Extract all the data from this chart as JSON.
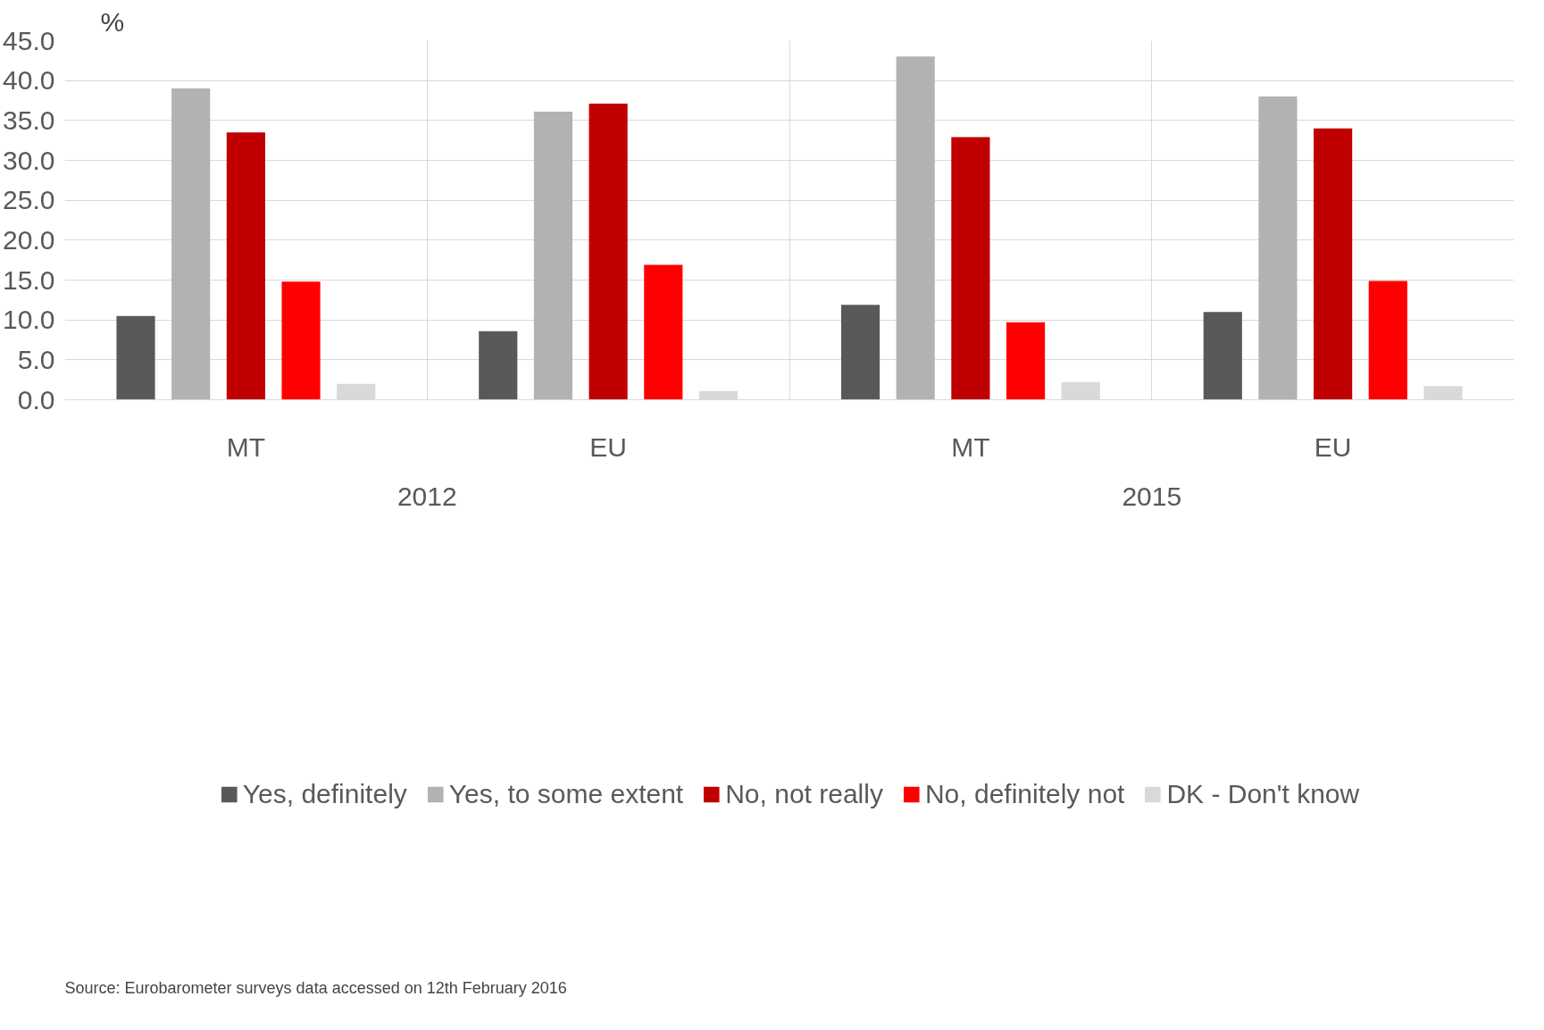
{
  "chart_data": {
    "type": "bar",
    "ylabel": "%",
    "categories": [
      "MT",
      "EU",
      "MT",
      "EU"
    ],
    "series": [
      {
        "name": "Yes, definitely",
        "color": "#595959",
        "values": [
          10.5,
          8.6,
          11.9,
          11.0
        ]
      },
      {
        "name": "Yes, to some extent",
        "color": "#b2b2b2",
        "values": [
          39.0,
          36.1,
          43.0,
          38.0
        ]
      },
      {
        "name": "No, not really",
        "color": "#c00000",
        "values": [
          33.5,
          37.1,
          32.9,
          34.0
        ]
      },
      {
        "name": "No, definitely not",
        "color": "#ff0000",
        "values": [
          14.8,
          16.9,
          9.7,
          14.9
        ]
      },
      {
        "name": "DK - Don't know",
        "color": "#d9d9d9",
        "values": [
          2.0,
          1.1,
          2.2,
          1.7
        ]
      }
    ],
    "ylim": [
      0,
      45
    ],
    "yticks": [
      {
        "value": 0,
        "label": "0.0"
      },
      {
        "value": 5,
        "label": "5.0"
      },
      {
        "value": 10,
        "label": "10.0"
      },
      {
        "value": 15,
        "label": "15.0"
      },
      {
        "value": 20,
        "label": "20.0"
      },
      {
        "value": 25,
        "label": "25.0"
      },
      {
        "value": 30,
        "label": "30.0"
      },
      {
        "value": 35,
        "label": "35.0"
      },
      {
        "value": 40,
        "label": "40.0"
      },
      {
        "value": 45,
        "label": "45.0"
      }
    ],
    "grid": true,
    "legend": "bottom",
    "annotations": [
      "2012",
      "2015",
      "Source: Eurobarometer surveys data accessed on 12th February 2016"
    ]
  }
}
